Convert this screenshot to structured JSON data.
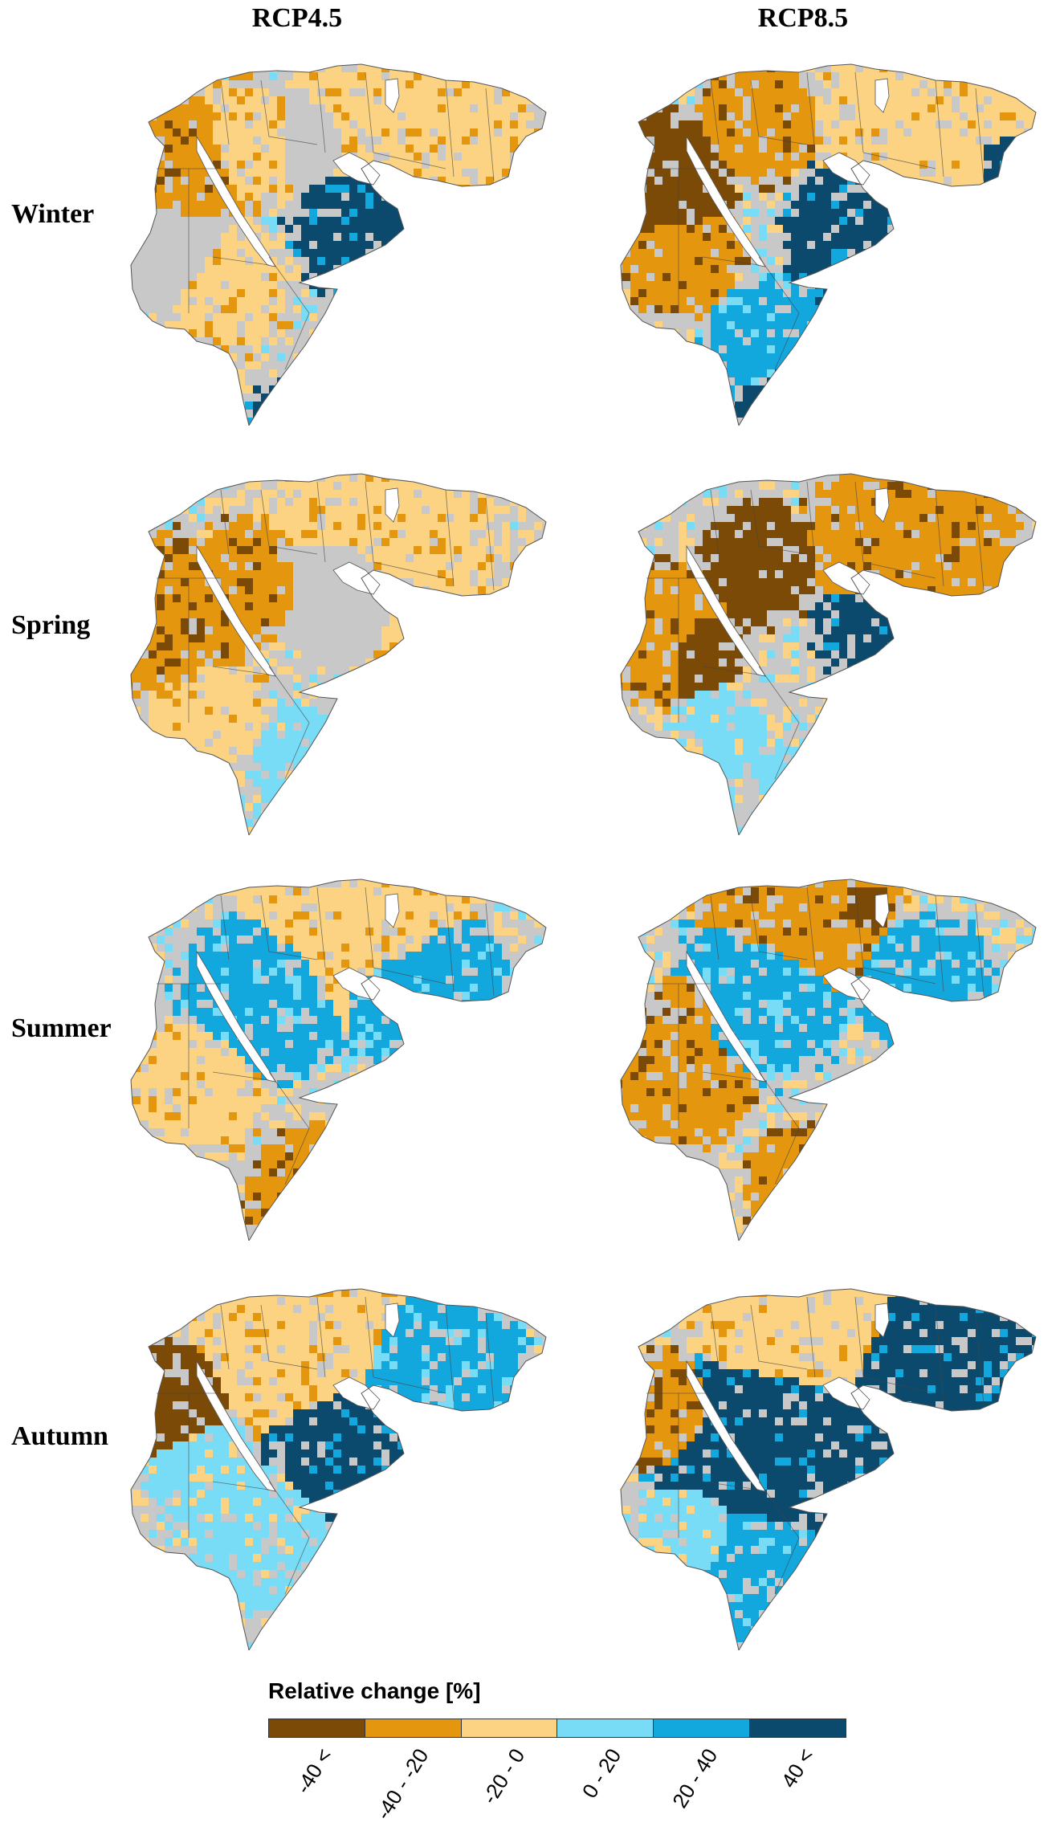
{
  "columns": [
    "RCP4.5",
    "RCP8.5"
  ],
  "rows": [
    "Winter",
    "Spring",
    "Summer",
    "Autumn"
  ],
  "legend": {
    "title": "Relative change [%]",
    "classes": [
      {
        "label": "-40 <",
        "color": "#7a4a06"
      },
      {
        "label": "-40 - -20",
        "color": "#e5960f"
      },
      {
        "label": "-20 - 0",
        "color": "#fbd382"
      },
      {
        "label": "0 - 20",
        "color": "#79dcf6"
      },
      {
        "label": "20 - 40",
        "color": "#12a7dd"
      },
      {
        "label": "40 <",
        "color": "#0b4a6d"
      }
    ]
  },
  "no_change_color": "#c8c8c8"
}
